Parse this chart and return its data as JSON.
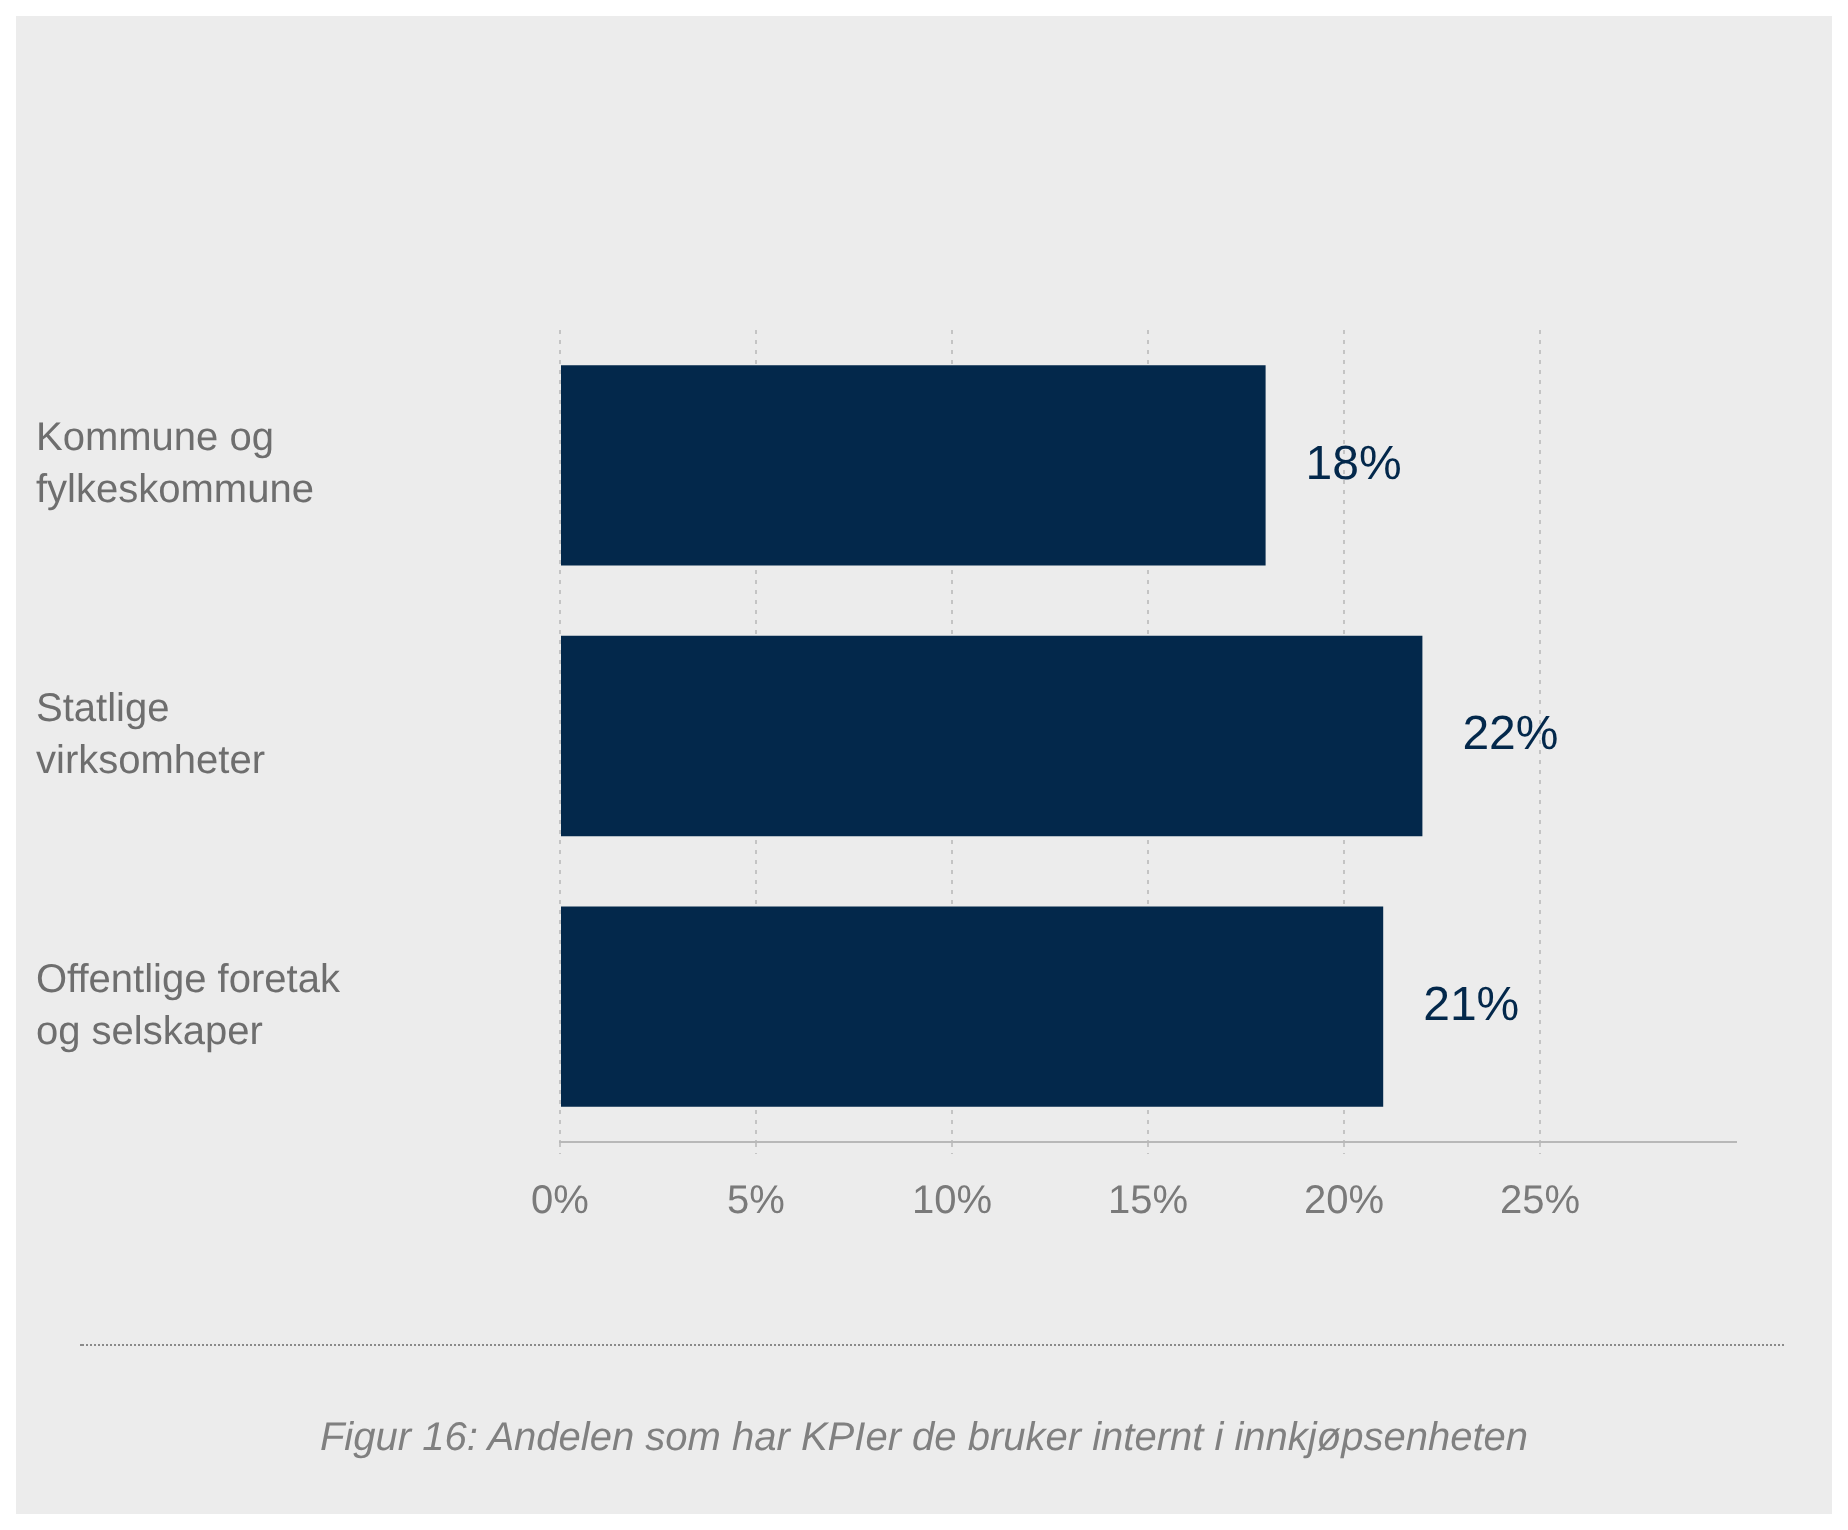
{
  "chart_data": {
    "type": "bar",
    "orientation": "horizontal",
    "categories": [
      "Kommune og fylkeskommune",
      "Statlige virksomheter",
      "Offentlige foretak og selskaper"
    ],
    "values": [
      18,
      22,
      21
    ],
    "value_labels": [
      "18%",
      "22%",
      "21%"
    ],
    "color": "#03284b",
    "xlim": [
      0,
      30
    ],
    "xticks": [
      {
        "value": 0,
        "label": "0%"
      },
      {
        "value": 5,
        "label": "5%"
      },
      {
        "value": 10,
        "label": "10%"
      },
      {
        "value": 15,
        "label": "15%"
      },
      {
        "value": 20,
        "label": "20%"
      },
      {
        "value": 25,
        "label": "25%"
      }
    ],
    "grid": "x",
    "annotations": [
      "Figur 16: Andelen som har KPIer de bruker internt i innkjøpsenheten"
    ]
  }
}
